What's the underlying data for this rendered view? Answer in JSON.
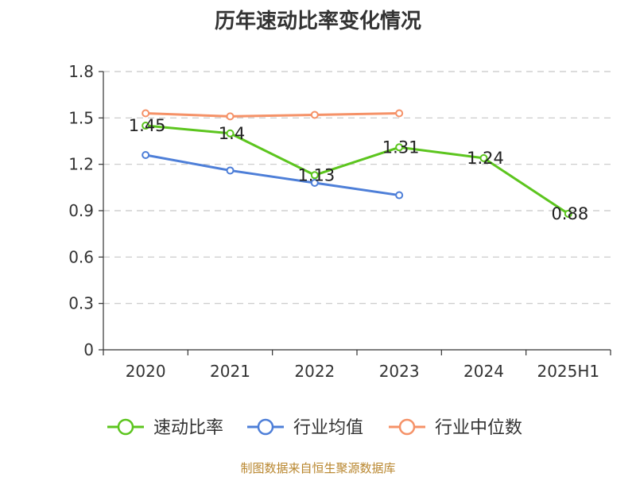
{
  "chart_data": {
    "type": "line",
    "title": "历年速动比率变化情况",
    "categories": [
      "2020",
      "2021",
      "2022",
      "2023",
      "2024",
      "2025H1"
    ],
    "ylim": [
      0,
      1.8
    ],
    "yticks": [
      "0",
      "0.3",
      "0.6",
      "0.9",
      "1.2",
      "1.5",
      "1.8"
    ],
    "grid": true,
    "legend_position": "bottom",
    "series": [
      {
        "name": "速动比率",
        "color": "#5cc51e",
        "values": [
          1.45,
          1.4,
          1.13,
          1.31,
          1.24,
          0.88
        ],
        "labels": [
          "1.45",
          "1.4",
          "1.13",
          "1.31",
          "1.24",
          "0.88"
        ]
      },
      {
        "name": "行业均值",
        "color": "#4e7fd8",
        "values": [
          1.26,
          1.16,
          1.08,
          1.0,
          null,
          null
        ]
      },
      {
        "name": "行业中位数",
        "color": "#f59268",
        "values": [
          1.53,
          1.51,
          1.52,
          1.53,
          null,
          null
        ]
      }
    ]
  },
  "footer": "制图数据来自恒生聚源数据库"
}
